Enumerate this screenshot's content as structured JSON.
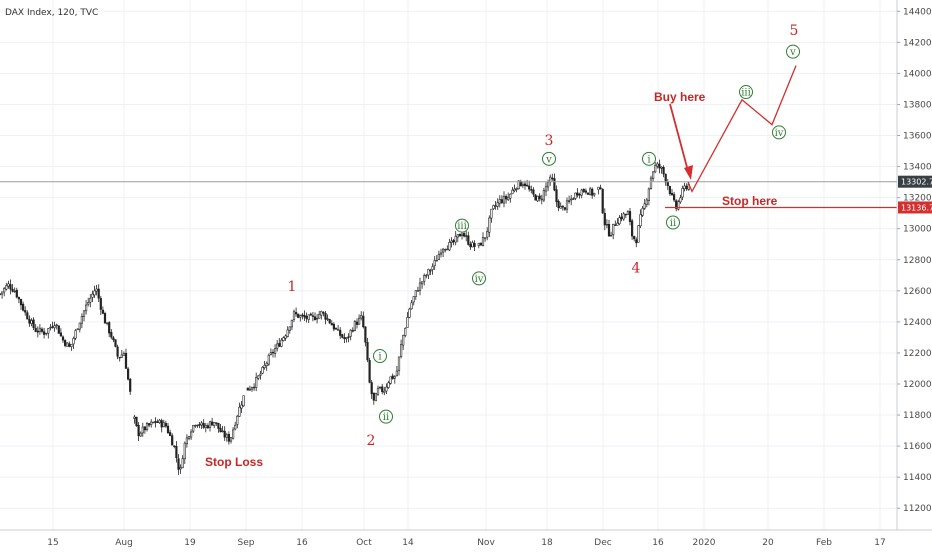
{
  "header": {
    "title": "DAX Index, 120, TVC"
  },
  "colors": {
    "grid": "#eef1f5",
    "candle": "#222222",
    "annotation_red": "#d32f2f",
    "wave_major": "#c62828",
    "wave_minor": "#2e7d32",
    "price_line": "#9e9e9e",
    "price_tag_dark": "#3a3f44",
    "price_tag_red": "#d32f2f"
  },
  "chart_data": {
    "type": "candlestick",
    "title": "DAX Index, 120, TVC",
    "ylim": [
      11100,
      14500
    ],
    "grid": true,
    "y_ticks": [
      "11200.0",
      "11400.0",
      "11600.0",
      "11800.0",
      "12000.0",
      "12200.0",
      "12400.0",
      "12600.0",
      "12800.0",
      "13000.0",
      "13200.0",
      "13400.0",
      "13600.0",
      "13800.0",
      "14000.0",
      "14200.0",
      "14400.0"
    ],
    "x_ticks": [
      "15",
      "Aug",
      "19",
      "Sep",
      "16",
      "Oct",
      "14",
      "Nov",
      "18",
      "Dec",
      "16",
      "2020",
      "20",
      "Feb",
      "17"
    ],
    "price_series": [
      [
        0,
        12580
      ],
      [
        8,
        12640
      ],
      [
        15,
        12600
      ],
      [
        25,
        12460
      ],
      [
        35,
        12350
      ],
      [
        45,
        12330
      ],
      [
        55,
        12400
      ],
      [
        62,
        12290
      ],
      [
        70,
        12230
      ],
      [
        78,
        12380
      ],
      [
        86,
        12500
      ],
      [
        96,
        12620
      ],
      [
        104,
        12420
      ],
      [
        112,
        12300
      ],
      [
        118,
        12170
      ],
      [
        124,
        12200
      ],
      [
        130,
        11950
      ],
      [
        134,
        11780
      ],
      [
        138,
        11680
      ],
      [
        146,
        11720
      ],
      [
        156,
        11760
      ],
      [
        166,
        11730
      ],
      [
        174,
        11600
      ],
      [
        180,
        11420
      ],
      [
        184,
        11600
      ],
      [
        190,
        11700
      ],
      [
        196,
        11760
      ],
      [
        204,
        11720
      ],
      [
        214,
        11760
      ],
      [
        222,
        11680
      ],
      [
        230,
        11640
      ],
      [
        238,
        11820
      ],
      [
        246,
        11960
      ],
      [
        254,
        12000
      ],
      [
        262,
        12080
      ],
      [
        270,
        12180
      ],
      [
        278,
        12250
      ],
      [
        286,
        12330
      ],
      [
        294,
        12450
      ],
      [
        302,
        12430
      ],
      [
        312,
        12420
      ],
      [
        322,
        12460
      ],
      [
        330,
        12400
      ],
      [
        338,
        12330
      ],
      [
        346,
        12280
      ],
      [
        354,
        12380
      ],
      [
        362,
        12430
      ],
      [
        366,
        12230
      ],
      [
        370,
        11980
      ],
      [
        374,
        11880
      ],
      [
        378,
        11960
      ],
      [
        384,
        11960
      ],
      [
        390,
        12040
      ],
      [
        396,
        12050
      ],
      [
        402,
        12280
      ],
      [
        410,
        12500
      ],
      [
        418,
        12620
      ],
      [
        426,
        12700
      ],
      [
        434,
        12770
      ],
      [
        442,
        12880
      ],
      [
        452,
        12900
      ],
      [
        462,
        12980
      ],
      [
        470,
        12900
      ],
      [
        478,
        12880
      ],
      [
        486,
        12960
      ],
      [
        492,
        13120
      ],
      [
        500,
        13180
      ],
      [
        508,
        13200
      ],
      [
        516,
        13280
      ],
      [
        524,
        13300
      ],
      [
        532,
        13220
      ],
      [
        540,
        13180
      ],
      [
        548,
        13300
      ],
      [
        552,
        13320
      ],
      [
        556,
        13180
      ],
      [
        562,
        13120
      ],
      [
        570,
        13180
      ],
      [
        578,
        13240
      ],
      [
        586,
        13250
      ],
      [
        594,
        13220
      ],
      [
        600,
        13270
      ],
      [
        604,
        13050
      ],
      [
        610,
        12960
      ],
      [
        616,
        13050
      ],
      [
        622,
        13080
      ],
      [
        628,
        13100
      ],
      [
        632,
        12960
      ],
      [
        636,
        12920
      ],
      [
        640,
        13060
      ],
      [
        646,
        13180
      ],
      [
        652,
        13360
      ],
      [
        656,
        13410
      ],
      [
        662,
        13380
      ],
      [
        668,
        13280
      ],
      [
        672,
        13200
      ],
      [
        676,
        13130
      ],
      [
        680,
        13200
      ],
      [
        684,
        13260
      ],
      [
        690,
        13290
      ]
    ],
    "projection_path": [
      [
        688,
        13300
      ],
      [
        692,
        13240
      ],
      [
        742,
        13830
      ],
      [
        772,
        13670
      ],
      [
        796,
        14050
      ]
    ],
    "price_lines": [
      {
        "value": 13302.7,
        "label": "13302.7"
      },
      {
        "value": 13136.7,
        "label": "13136.7"
      }
    ],
    "wave_labels": [
      {
        "text": "1",
        "x": 292,
        "y": 12630,
        "kind": "major"
      },
      {
        "text": "2",
        "x": 371,
        "y": 11640,
        "kind": "major"
      },
      {
        "text": "3",
        "x": 549,
        "y": 13570,
        "kind": "major"
      },
      {
        "text": "4",
        "x": 636,
        "y": 12750,
        "kind": "major"
      },
      {
        "text": "5",
        "x": 794,
        "y": 14280,
        "kind": "major"
      },
      {
        "text": "i",
        "x": 380,
        "y": 12180,
        "kind": "minor"
      },
      {
        "text": "ii",
        "x": 386,
        "y": 11790,
        "kind": "minor"
      },
      {
        "text": "iii",
        "x": 462,
        "y": 13020,
        "kind": "minor"
      },
      {
        "text": "iv",
        "x": 479,
        "y": 12680,
        "kind": "minor"
      },
      {
        "text": "v",
        "x": 549,
        "y": 13450,
        "kind": "minor"
      },
      {
        "text": "i",
        "x": 649,
        "y": 13450,
        "kind": "minor"
      },
      {
        "text": "ii",
        "x": 673,
        "y": 13040,
        "kind": "minor"
      },
      {
        "text": "iii",
        "x": 746,
        "y": 13880,
        "kind": "minor"
      },
      {
        "text": "iv",
        "x": 779,
        "y": 13620,
        "kind": "minor"
      },
      {
        "text": "v",
        "x": 793,
        "y": 14140,
        "kind": "minor"
      }
    ],
    "annotations": {
      "buy_here": "Buy here",
      "stop_here": "Stop here",
      "stop_loss": "Stop Loss"
    }
  }
}
